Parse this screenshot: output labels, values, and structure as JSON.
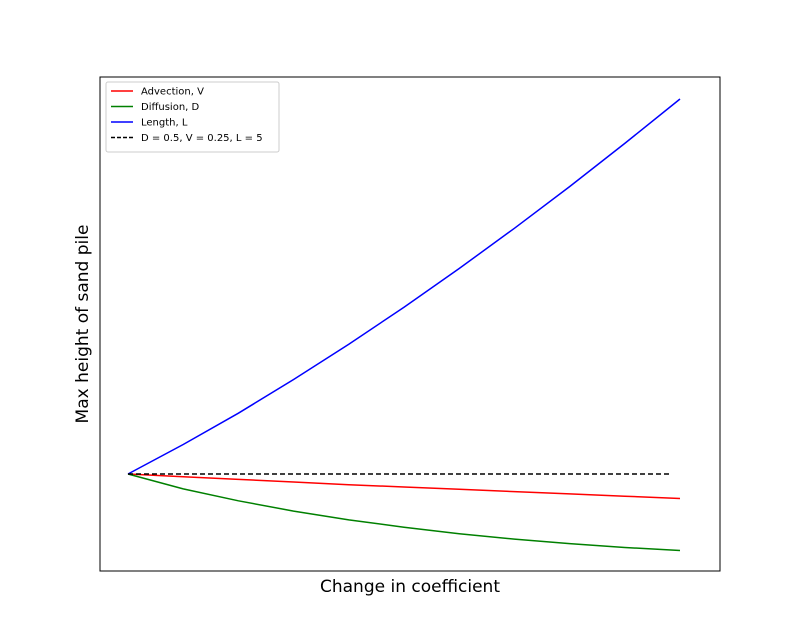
{
  "chart_data": {
    "type": "line",
    "title": "",
    "xlabel": "Change in coefficient",
    "ylabel": "Max height of sand pile",
    "x_ticks": "none",
    "y_ticks": "none",
    "grid": false,
    "legend_position": "top-left",
    "xlim": [
      0,
      1
    ],
    "ylim": [
      -0.25,
      1.05
    ],
    "series": [
      {
        "name": "Advection, V",
        "color": "#ff0000",
        "style": "solid",
        "x": [
          0,
          0.1,
          0.2,
          0.3,
          0.4,
          0.5,
          0.6,
          0.7,
          0.8,
          0.9,
          1.0
        ],
        "values": [
          0,
          -0.007,
          -0.014,
          -0.021,
          -0.028,
          -0.034,
          -0.04,
          -0.046,
          -0.052,
          -0.058,
          -0.064
        ]
      },
      {
        "name": "Diffusion, D",
        "color": "#008000",
        "style": "solid",
        "x": [
          0,
          0.1,
          0.2,
          0.3,
          0.4,
          0.5,
          0.6,
          0.7,
          0.8,
          0.9,
          1.0
        ],
        "values": [
          0,
          -0.039,
          -0.07,
          -0.097,
          -0.12,
          -0.139,
          -0.156,
          -0.17,
          -0.182,
          -0.192,
          -0.2
        ]
      },
      {
        "name": "Length, L",
        "color": "#0000ff",
        "style": "solid",
        "x": [
          0,
          0.1,
          0.2,
          0.3,
          0.4,
          0.5,
          0.6,
          0.7,
          0.8,
          0.9,
          1.0
        ],
        "values": [
          0,
          0.077,
          0.159,
          0.247,
          0.339,
          0.436,
          0.537,
          0.642,
          0.751,
          0.864,
          0.98
        ]
      },
      {
        "name": "D = 0.5, V = 0.25, L = 5",
        "color": "#000000",
        "style": "dashed",
        "x": [
          0,
          0.98
        ],
        "values": [
          0,
          0
        ]
      }
    ]
  }
}
